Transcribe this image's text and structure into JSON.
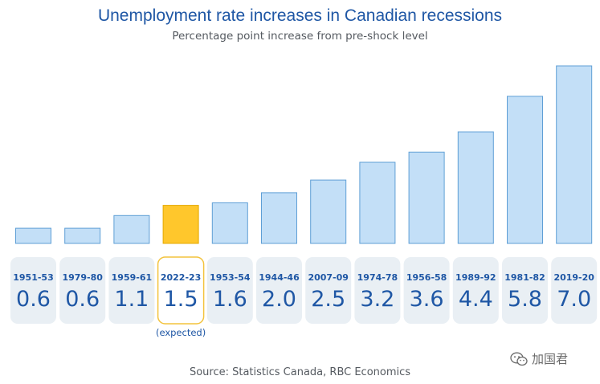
{
  "chart_data": {
    "type": "bar",
    "title": "Unemployment rate increases in Canadian recessions",
    "subtitle": "Percentage point increase from pre-shock level",
    "categories": [
      "1951-53",
      "1979-80",
      "1959-61",
      "2022-23",
      "1953-54",
      "1944-46",
      "2007-09",
      "1974-78",
      "1956-58",
      "1989-92",
      "1981-82",
      "2019-20"
    ],
    "values": [
      0.6,
      0.6,
      1.1,
      1.5,
      1.6,
      2.0,
      2.5,
      3.2,
      3.6,
      4.4,
      5.8,
      7.0
    ],
    "value_labels": [
      "0.6",
      "0.6",
      "1.1",
      "1.5",
      "1.6",
      "2.0",
      "2.5",
      "3.2",
      "3.6",
      "4.4",
      "5.8",
      "7.0"
    ],
    "highlight_index": 3,
    "highlight_note": "(expected)",
    "ylim": [
      0,
      7.0
    ],
    "xlabel": "",
    "ylabel": "",
    "grid": false,
    "colors": {
      "bar": "#c3dff7",
      "bar_highlight": "#ffc72c",
      "text": "#1f57a5"
    }
  },
  "source": "Source: Statistics Canada, RBC Economics",
  "watermark": "加国君",
  "watermark_icon": "wechat-icon"
}
